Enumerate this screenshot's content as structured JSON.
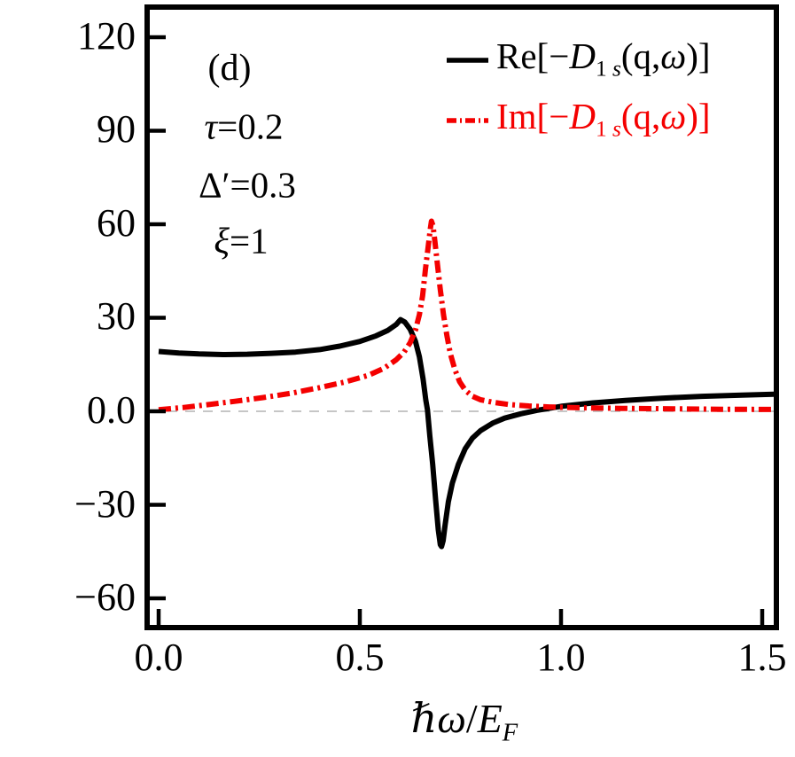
{
  "panel": {
    "label": "(d)"
  },
  "annotations": {
    "items": [
      {
        "plain": "τ=0.2",
        "segments": [
          {
            "t": "τ",
            "i": true
          },
          {
            "t": "=0.2"
          }
        ]
      },
      {
        "plain": "Δ′=0.3",
        "segments": [
          {
            "t": "Δ′=0.3"
          }
        ]
      },
      {
        "plain": "ξ=1",
        "segments": [
          {
            "t": "ξ",
            "i": true
          },
          {
            "t": "=1"
          }
        ]
      }
    ]
  },
  "legend": {
    "items": [
      {
        "plain": "Re[−D1s(q,ω)]",
        "color": "#000000",
        "line": "solid",
        "segments": [
          {
            "t": "Re[−"
          },
          {
            "t": "D",
            "i": true
          },
          {
            "t": "1 ",
            "sub": true
          },
          {
            "t": "s",
            "sub": true,
            "i": true
          },
          {
            "t": "(q,"
          },
          {
            "t": "ω",
            "i": true
          },
          {
            "t": ")]"
          }
        ]
      },
      {
        "plain": "Im[−D1s(q,ω)]",
        "color": "#f40000",
        "line": "dashed",
        "segments": [
          {
            "t": "Im[−"
          },
          {
            "t": "D",
            "i": true
          },
          {
            "t": "1 ",
            "sub": true
          },
          {
            "t": "s",
            "sub": true,
            "i": true
          },
          {
            "t": "(q,"
          },
          {
            "t": "ω",
            "i": true
          },
          {
            "t": ")]"
          }
        ]
      }
    ]
  },
  "xaxis": {
    "label_plain": "ℏω/EF",
    "label_segments": [
      {
        "t": "ℏ",
        "i": true
      },
      {
        "t": "ω",
        "i": true
      },
      {
        "t": "/"
      },
      {
        "t": "E",
        "i": true
      },
      {
        "t": "F",
        "i": true,
        "sub": true
      }
    ]
  },
  "chart_data": {
    "type": "line",
    "title": "",
    "xlabel": "ℏω/E_F",
    "ylabel": "",
    "xlim": [
      -0.03,
      1.535
    ],
    "ylim": [
      -70,
      130
    ],
    "grid": false,
    "frame": true,
    "zero_line": true,
    "zero_line_color": "#b3b3b3",
    "legend_position": "top-right",
    "text_annotations": [
      "(d)",
      "τ=0.2",
      "Δ′=0.3",
      "ξ=1"
    ],
    "x_ticks": {
      "values": [
        0,
        0.5,
        1.0,
        1.5
      ],
      "labels": [
        "0.0",
        "0.5",
        "1.0",
        "1.5"
      ]
    },
    "y_ticks": {
      "values": [
        120,
        90,
        60,
        30,
        0,
        -30,
        -60
      ],
      "labels": [
        "120",
        "90",
        "60",
        "30",
        "0.0",
        "−30",
        "−60"
      ]
    },
    "series": [
      {
        "name": "Re[−D1s(q,ω)]",
        "color": "#000000",
        "style": "solid",
        "points": [
          [
            0,
            19.2
          ],
          [
            0.05,
            18.7
          ],
          [
            0.1,
            18.4
          ],
          [
            0.16,
            18.2
          ],
          [
            0.22,
            18.3
          ],
          [
            0.28,
            18.6
          ],
          [
            0.34,
            19.0
          ],
          [
            0.4,
            19.8
          ],
          [
            0.45,
            20.9
          ],
          [
            0.5,
            22.4
          ],
          [
            0.54,
            24.2
          ],
          [
            0.57,
            26.0
          ],
          [
            0.59,
            27.8
          ],
          [
            0.601,
            29.4
          ],
          [
            0.612,
            28.6
          ],
          [
            0.625,
            26.3
          ],
          [
            0.638,
            22.5
          ],
          [
            0.648,
            17.5
          ],
          [
            0.657,
            10.5
          ],
          [
            0.664,
            3.5
          ],
          [
            0.668,
            0.5
          ],
          [
            0.674,
            -8
          ],
          [
            0.681,
            -17
          ],
          [
            0.688,
            -28
          ],
          [
            0.695,
            -38
          ],
          [
            0.7,
            -42.8
          ],
          [
            0.703,
            -43.4
          ],
          [
            0.707,
            -41.5
          ],
          [
            0.712,
            -36.5
          ],
          [
            0.72,
            -29
          ],
          [
            0.73,
            -23
          ],
          [
            0.745,
            -17
          ],
          [
            0.762,
            -12
          ],
          [
            0.78,
            -8.6
          ],
          [
            0.8,
            -6.2
          ],
          [
            0.83,
            -3.8
          ],
          [
            0.86,
            -2.2
          ],
          [
            0.9,
            -0.8
          ],
          [
            0.94,
            0.3
          ],
          [
            1.0,
            1.6
          ],
          [
            1.08,
            2.7
          ],
          [
            1.16,
            3.5
          ],
          [
            1.25,
            4.2
          ],
          [
            1.35,
            4.8
          ],
          [
            1.45,
            5.2
          ],
          [
            1.535,
            5.5
          ]
        ]
      },
      {
        "name": "Im[−D1s(q,ω)]",
        "color": "#f40000",
        "style": "dashed",
        "points": [
          [
            0,
            0.5
          ],
          [
            0.06,
            1.2
          ],
          [
            0.12,
            2.1
          ],
          [
            0.19,
            3.2
          ],
          [
            0.26,
            4.4
          ],
          [
            0.33,
            5.8
          ],
          [
            0.4,
            7.6
          ],
          [
            0.46,
            9.3
          ],
          [
            0.52,
            11.5
          ],
          [
            0.56,
            13.8
          ],
          [
            0.59,
            16.5
          ],
          [
            0.61,
            19
          ],
          [
            0.625,
            22
          ],
          [
            0.638,
            26
          ],
          [
            0.648,
            31
          ],
          [
            0.656,
            37
          ],
          [
            0.663,
            45.5
          ],
          [
            0.67,
            53
          ],
          [
            0.675,
            58.5
          ],
          [
            0.678,
            61
          ],
          [
            0.682,
            59.5
          ],
          [
            0.687,
            54
          ],
          [
            0.693,
            47
          ],
          [
            0.7,
            39
          ],
          [
            0.708,
            31
          ],
          [
            0.716,
            24.5
          ],
          [
            0.725,
            18.5
          ],
          [
            0.736,
            13.5
          ],
          [
            0.748,
            9.5
          ],
          [
            0.762,
            6.8
          ],
          [
            0.78,
            4.8
          ],
          [
            0.8,
            3.7
          ],
          [
            0.83,
            2.9
          ],
          [
            0.87,
            2.2
          ],
          [
            0.92,
            1.7
          ],
          [
            0.97,
            1.4
          ],
          [
            1.05,
            1.1
          ],
          [
            1.15,
            0.95
          ],
          [
            1.28,
            0.8
          ],
          [
            1.4,
            0.65
          ],
          [
            1.535,
            0.6
          ]
        ]
      }
    ]
  }
}
